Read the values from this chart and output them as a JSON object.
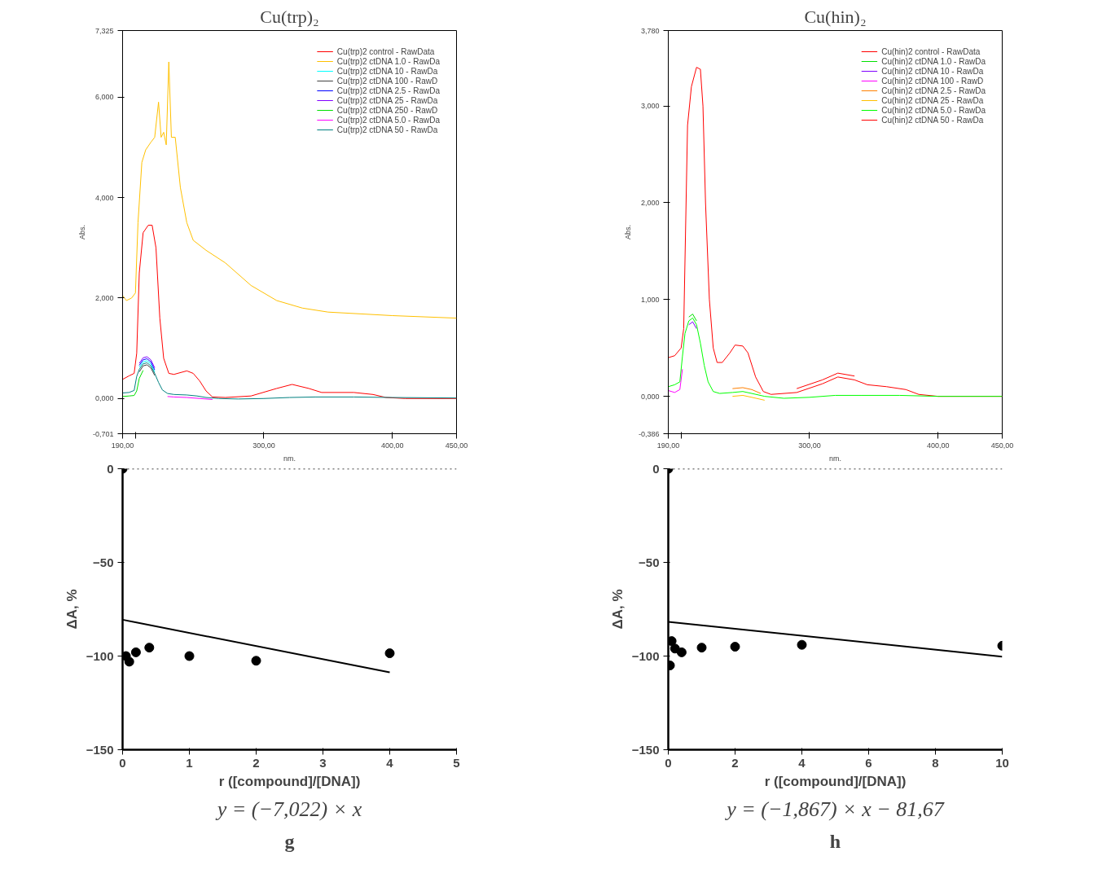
{
  "chart_data": [
    {
      "type": "line",
      "title": "Cu(trp)₂",
      "xlabel": "nm.",
      "ylabel": "Abs.",
      "xlim": [
        190,
        450
      ],
      "ylim": [
        -0.701,
        7.325
      ],
      "xticks": [
        {
          "value": 190,
          "label": "190,00"
        },
        {
          "value": 200,
          "label": null
        },
        {
          "value": 300,
          "label": "300,00"
        },
        {
          "value": 400,
          "label": "400,00"
        },
        {
          "value": 450,
          "label": "450,00"
        }
      ],
      "yticks": [
        {
          "value": -0.701,
          "label": "-0,701"
        },
        {
          "value": 0,
          "label": "0,000"
        },
        {
          "value": 2,
          "label": "2,000"
        },
        {
          "value": 4,
          "label": "4,000"
        },
        {
          "value": 6,
          "label": "6,000"
        },
        {
          "value": 7.325,
          "label": "7,325"
        }
      ],
      "grid": false,
      "legend": "top right",
      "line_style": "solid",
      "series": [
        {
          "name": "Cu(trp)2 control - RawData",
          "color": "#ff0000",
          "x": [
            190,
            195,
            199,
            201,
            203,
            206,
            210,
            213,
            216,
            219,
            222,
            226,
            230,
            240,
            245,
            250,
            255,
            260,
            270,
            290,
            310,
            322,
            335,
            345,
            370,
            385,
            395,
            410,
            450
          ],
          "values": [
            0.38,
            0.45,
            0.5,
            0.9,
            2.5,
            3.3,
            3.45,
            3.45,
            3.0,
            1.6,
            0.8,
            0.5,
            0.48,
            0.55,
            0.5,
            0.35,
            0.15,
            0.03,
            0.02,
            0.05,
            0.2,
            0.28,
            0.2,
            0.12,
            0.12,
            0.08,
            0.02,
            0.0,
            0.0
          ]
        },
        {
          "name": "Cu(trp)2 ctDNA 1.0 - RawDa",
          "color": "#ffc000",
          "x": [
            190,
            193,
            197,
            200,
            202,
            205,
            208,
            212,
            215,
            218,
            220,
            222,
            224,
            226,
            228,
            231,
            235,
            240,
            245,
            255,
            270,
            290,
            310,
            330,
            350,
            400,
            450
          ],
          "values": [
            2.05,
            1.95,
            2.0,
            2.1,
            3.5,
            4.7,
            4.95,
            5.1,
            5.2,
            5.9,
            5.2,
            5.3,
            5.05,
            6.7,
            5.2,
            5.2,
            4.2,
            3.5,
            3.15,
            2.95,
            2.7,
            2.25,
            1.95,
            1.8,
            1.72,
            1.65,
            1.6
          ]
        },
        {
          "name": "Cu(trp)2 ctDNA 10 - RawDa",
          "color": "#00ffff",
          "x": [
            203,
            206,
            209,
            212,
            215
          ],
          "values": [
            0.62,
            0.73,
            0.75,
            0.69,
            0.53
          ]
        },
        {
          "name": "Cu(trp)2 ctDNA 100 - RawD",
          "color": "#404040",
          "x": [
            203,
            206,
            209,
            212,
            215
          ],
          "values": [
            0.53,
            0.65,
            0.67,
            0.61,
            0.46
          ]
        },
        {
          "name": "Cu(trp)2 ctDNA 2.5 - RawDa",
          "color": "#0000ff",
          "x": [
            203,
            206,
            209,
            212,
            215
          ],
          "values": [
            0.66,
            0.77,
            0.79,
            0.73,
            0.57
          ]
        },
        {
          "name": "Cu(trp)2 ctDNA 25 - RawDa",
          "color": "#8000ff",
          "x": [
            203,
            206,
            209,
            212,
            215
          ],
          "values": [
            0.7,
            0.81,
            0.83,
            0.77,
            0.61
          ]
        },
        {
          "name": "Cu(trp)2 ctDNA 250 - RawD",
          "color": "#00e000",
          "x": [
            190,
            195,
            199,
            201,
            203,
            206
          ],
          "values": [
            0.04,
            0.05,
            0.06,
            0.15,
            0.4,
            0.56
          ]
        },
        {
          "name": "Cu(trp)2 ctDNA 5.0 - RawDa",
          "color": "#ff00ff",
          "x": [
            225,
            230,
            240,
            250,
            260
          ],
          "values": [
            0.04,
            0.03,
            0.02,
            0.0,
            -0.02
          ]
        },
        {
          "name": "Cu(trp)2 ctDNA 50 - RawDa",
          "color": "#008080",
          "x": [
            190,
            195,
            199,
            201,
            203,
            206,
            209,
            212,
            215,
            218,
            221,
            225,
            230,
            240,
            248,
            255,
            265,
            280,
            300,
            320,
            340,
            370,
            400,
            450
          ],
          "values": [
            0.11,
            0.12,
            0.16,
            0.44,
            0.58,
            0.69,
            0.71,
            0.65,
            0.5,
            0.32,
            0.17,
            0.1,
            0.08,
            0.07,
            0.05,
            0.02,
            0.0,
            -0.01,
            0.0,
            0.02,
            0.03,
            0.03,
            0.02,
            0.01
          ]
        }
      ]
    },
    {
      "type": "line",
      "title": "Cu(hin)₂",
      "xlabel": "nm.",
      "ylabel": "Abs.",
      "xlim": [
        190,
        450
      ],
      "ylim": [
        -0.386,
        3.78
      ],
      "xticks": [
        {
          "value": 190,
          "label": "190,00"
        },
        {
          "value": 200,
          "label": null
        },
        {
          "value": 300,
          "label": "300,00"
        },
        {
          "value": 400,
          "label": "400,00"
        },
        {
          "value": 450,
          "label": "450,00"
        }
      ],
      "yticks": [
        {
          "value": -0.386,
          "label": "-0,386"
        },
        {
          "value": 0,
          "label": "0,000"
        },
        {
          "value": 1,
          "label": "1,000"
        },
        {
          "value": 2,
          "label": "2,000"
        },
        {
          "value": 3,
          "label": "3,000"
        },
        {
          "value": 3.78,
          "label": "3,780"
        }
      ],
      "grid": false,
      "legend": "top right",
      "line_style": "solid",
      "series": [
        {
          "name": "Cu(hin)2 control - RawData",
          "color": "#ff0000",
          "x": [
            190,
            195,
            200,
            202,
            205,
            208,
            212,
            215,
            217,
            219,
            222,
            225,
            228,
            232,
            238,
            242,
            248,
            252,
            258,
            264,
            270,
            290,
            310,
            322,
            335,
            345,
            360,
            375,
            385,
            400,
            450
          ],
          "values": [
            0.4,
            0.42,
            0.5,
            0.7,
            2.8,
            3.2,
            3.4,
            3.38,
            3.0,
            2.0,
            1.0,
            0.5,
            0.35,
            0.35,
            0.45,
            0.53,
            0.52,
            0.45,
            0.2,
            0.05,
            0.02,
            0.04,
            0.13,
            0.2,
            0.17,
            0.12,
            0.1,
            0.07,
            0.02,
            0.0,
            0.0
          ]
        },
        {
          "name": "Cu(hin)2 ctDNA 1.0 - RawDa",
          "color": "#00e000",
          "x": [
            206,
            209,
            212
          ],
          "values": [
            0.82,
            0.85,
            0.78
          ]
        },
        {
          "name": "Cu(hin)2 ctDNA 10 - RawDa",
          "color": "#8000ff",
          "x": [
            206,
            209,
            212
          ],
          "values": [
            0.74,
            0.77,
            0.7
          ]
        },
        {
          "name": "Cu(hin)2 ctDNA 100 - RawD",
          "color": "#ff00ff",
          "x": [
            190,
            195,
            199,
            201
          ],
          "values": [
            0.06,
            0.04,
            0.07,
            0.28
          ]
        },
        {
          "name": "Cu(hin)2 ctDNA 2.5 - RawDa",
          "color": "#ff8000",
          "x": [
            240,
            248,
            255,
            262
          ],
          "values": [
            0.08,
            0.09,
            0.07,
            0.03
          ]
        },
        {
          "name": "Cu(hin)2 ctDNA 25 - RawDa",
          "color": "#ffc000",
          "x": [
            240,
            248,
            255,
            265
          ],
          "values": [
            0.0,
            0.01,
            -0.01,
            -0.04
          ]
        },
        {
          "name": "Cu(hin)2 ctDNA 5.0 - RawDa",
          "color": "#00ff00",
          "x": [
            190,
            195,
            199,
            201,
            203,
            206,
            209,
            212,
            215,
            218,
            221,
            225,
            230,
            240,
            248,
            255,
            265,
            280,
            300,
            320,
            340,
            370,
            400,
            450
          ],
          "values": [
            0.1,
            0.12,
            0.15,
            0.41,
            0.65,
            0.78,
            0.81,
            0.74,
            0.55,
            0.32,
            0.15,
            0.05,
            0.03,
            0.04,
            0.05,
            0.03,
            0.0,
            -0.02,
            -0.01,
            0.01,
            0.01,
            0.01,
            0.0,
            0.0
          ]
        },
        {
          "name": "Cu(hin)2 ctDNA 50 - RawDa",
          "color": "#ff0000",
          "x": [
            290,
            310,
            322,
            335
          ],
          "values": [
            0.08,
            0.17,
            0.24,
            0.21
          ]
        }
      ]
    },
    {
      "type": "scatter",
      "xlabel": "r ([compound]/[DNA])",
      "ylabel": "ΔA, %",
      "xlim": [
        0,
        5
      ],
      "ylim": [
        -150,
        0
      ],
      "xticks": [
        0,
        1,
        2,
        3,
        4,
        5
      ],
      "yticks": [
        -150,
        -100,
        -50,
        0
      ],
      "grid": false,
      "ref_lines": [
        {
          "axis": "y",
          "value": 0,
          "line_style": "dotted"
        }
      ],
      "annotations": [
        "y = (−7,022) × x",
        "g"
      ],
      "series": [
        {
          "color": "#000000",
          "marker": "circle",
          "x": [
            0,
            0.05,
            0.1,
            0.2,
            0.4,
            1,
            2,
            4
          ],
          "values": [
            0,
            -100,
            -103,
            -98,
            -95.5,
            -100,
            -102.5,
            -98.5
          ]
        },
        {
          "type": "line",
          "color": "#000000",
          "marker": "none",
          "x": [
            0,
            4
          ],
          "values": [
            -80.6,
            -108.7
          ]
        }
      ]
    },
    {
      "type": "scatter",
      "xlabel": "r ([compound]/[DNA])",
      "ylabel": "ΔA, %",
      "xlim": [
        0,
        10
      ],
      "ylim": [
        -150,
        0
      ],
      "xticks": [
        0,
        2,
        4,
        6,
        8,
        10
      ],
      "yticks": [
        -150,
        -100,
        -50,
        0
      ],
      "grid": false,
      "ref_lines": [
        {
          "axis": "y",
          "value": 0,
          "line_style": "dotted"
        }
      ],
      "annotations": [
        "y = (−1,867) × x − 81,67",
        "h"
      ],
      "series": [
        {
          "color": "#000000",
          "marker": "circle",
          "x": [
            0,
            0.05,
            0.1,
            0.2,
            0.4,
            1,
            2,
            4,
            10
          ],
          "values": [
            0,
            -105,
            -92,
            -96,
            -98,
            -95.5,
            -95,
            -94,
            -94.5
          ]
        },
        {
          "type": "line",
          "color": "#000000",
          "marker": "none",
          "x": [
            0,
            10
          ],
          "values": [
            -81.7,
            -100.3
          ]
        }
      ]
    }
  ]
}
